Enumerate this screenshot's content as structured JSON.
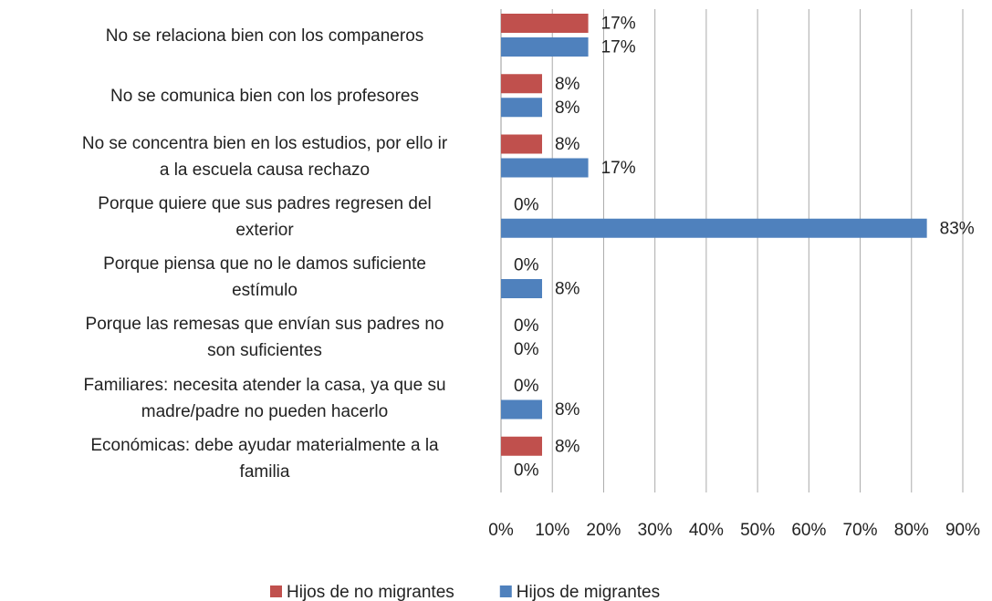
{
  "chart_data": {
    "type": "hbar",
    "categories": [
      "No se relaciona bien con los companeros",
      "No se comunica bien con los profesores",
      "No se concentra bien en los estudios, por ello ir\na la escuela causa rechazo",
      "Porque quiere que sus padres regresen del\nexterior",
      "Porque piensa que no le damos suficiente\nestímulo",
      "Porque las remesas que envían sus padres no\nson suficientes",
      "Familiares: necesita atender la casa, ya que su\nmadre/padre no pueden hacerlo",
      "Económicas: debe ayudar materialmente a la\nfamilia"
    ],
    "series": [
      {
        "name": "Hijos de no migrantes",
        "color": "#c0504d",
        "values": [
          17,
          8,
          8,
          0,
          0,
          0,
          0,
          8
        ],
        "value_labels": [
          "17%",
          "8%",
          "8%",
          "0%",
          "0%",
          "0%",
          "0%",
          "8%"
        ]
      },
      {
        "name": "Hijos de migrantes",
        "color": "#4f81bd",
        "values": [
          17,
          8,
          17,
          83,
          8,
          0,
          8,
          0
        ],
        "value_labels": [
          "17%",
          "8%",
          "17%",
          "83%",
          "8%",
          "0%",
          "8%",
          "0%"
        ]
      }
    ],
    "xlim": [
      0,
      90
    ],
    "xticks": [
      {
        "value": 0,
        "label": "0%"
      },
      {
        "value": 10,
        "label": "10%"
      },
      {
        "value": 20,
        "label": "20%"
      },
      {
        "value": 30,
        "label": "30%"
      },
      {
        "value": 40,
        "label": "40%"
      },
      {
        "value": 50,
        "label": "50%"
      },
      {
        "value": 60,
        "label": "60%"
      },
      {
        "value": 70,
        "label": "70%"
      },
      {
        "value": 80,
        "label": "80%"
      },
      {
        "value": 90,
        "label": "90%"
      }
    ],
    "grid": true,
    "legend": "bottom"
  }
}
